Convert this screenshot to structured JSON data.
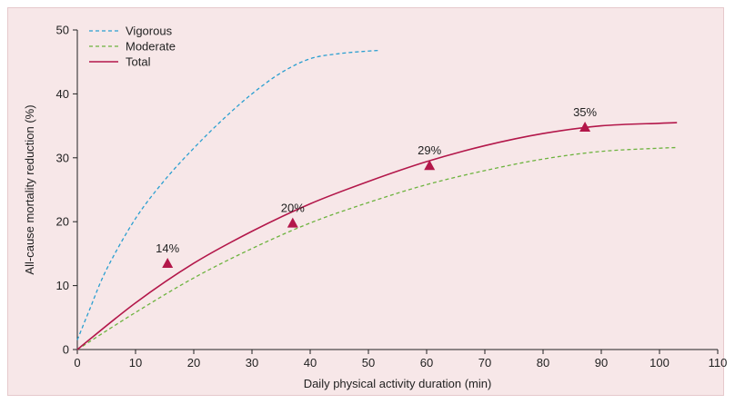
{
  "chart_data": {
    "type": "line",
    "title": "",
    "xlabel": "Daily physical activity duration (min)",
    "ylabel": "All-cause mortality reduction (%)",
    "xlim": [
      0,
      110
    ],
    "ylim": [
      0,
      50
    ],
    "x_ticks": [
      "0",
      "10",
      "20",
      "30",
      "40",
      "50",
      "60",
      "70",
      "80",
      "90",
      "100",
      "110"
    ],
    "y_ticks": [
      "0",
      "10",
      "20",
      "30",
      "40",
      "50"
    ],
    "grid": false,
    "legend_position": "top-left",
    "series": [
      {
        "name": "Vigorous",
        "style": "dashed",
        "color": "#2a9fd0",
        "x": [
          0,
          2,
          5,
          10,
          15,
          20,
          25,
          30,
          35,
          40,
          45,
          50,
          52
        ],
        "y": [
          1.5,
          6,
          12.5,
          20.5,
          26.5,
          31.5,
          36,
          40,
          43.3,
          45.5,
          46.3,
          46.7,
          46.8
        ]
      },
      {
        "name": "Moderate",
        "style": "dashed",
        "color": "#6db33f",
        "x": [
          0,
          10,
          20,
          30,
          40,
          50,
          60,
          70,
          80,
          90,
          100,
          103
        ],
        "y": [
          0,
          5.8,
          11.2,
          15.8,
          19.8,
          23,
          25.8,
          28,
          29.8,
          31,
          31.5,
          31.6
        ]
      },
      {
        "name": "Total",
        "style": "solid",
        "color": "#b3174a",
        "x": [
          0,
          10,
          20,
          30,
          40,
          50,
          60,
          70,
          80,
          90,
          100,
          103
        ],
        "y": [
          0,
          7.3,
          13.5,
          18.5,
          22.8,
          26.3,
          29.4,
          31.9,
          33.8,
          35,
          35.4,
          35.5
        ]
      }
    ],
    "markers": [
      {
        "x": 15.5,
        "y": 13.5,
        "label": "14%"
      },
      {
        "x": 37,
        "y": 19.8,
        "label": "20%"
      },
      {
        "x": 60.5,
        "y": 28.8,
        "label": "29%"
      },
      {
        "x": 87.2,
        "y": 34.8,
        "label": "35%"
      }
    ],
    "marker_color": "#b3174a"
  }
}
